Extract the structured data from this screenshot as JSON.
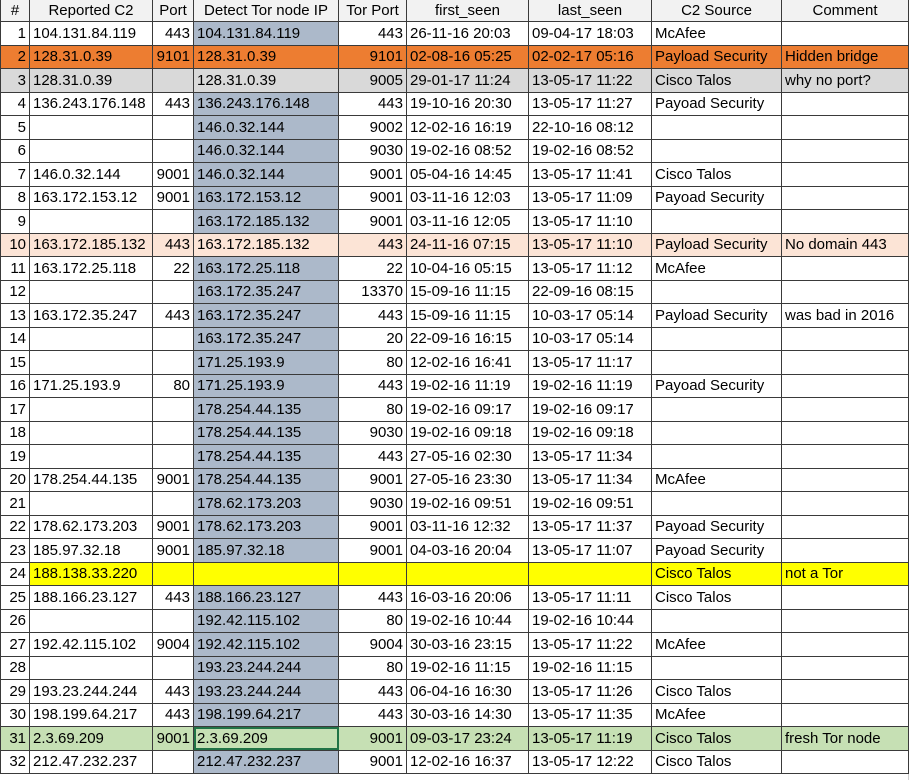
{
  "headers": [
    "#",
    "Reported C2",
    "Port",
    "Detect Tor node IP",
    "Tor Port",
    "first_seen",
    "last_seen",
    "C2 Source",
    "Comment"
  ],
  "row_colors": {
    "orange": "#ED7D31",
    "gray": "#D9D9D9",
    "peach": "#FCE4D6",
    "yellow": "#FFFF00",
    "green": "#C6E0B4",
    "ip_column": "#ACB9CA"
  },
  "selected_cell": {
    "row": 31,
    "column": "Detect Tor node IP"
  },
  "rows": [
    {
      "n": "1",
      "c2": "104.131.84.119",
      "port": "443",
      "ip": "104.131.84.119",
      "tor_port": "443",
      "first": "26-11-16 20:03",
      "last": "09-04-17 18:03",
      "source": "McAfee",
      "comment": "",
      "hl": ""
    },
    {
      "n": "2",
      "c2": "128.31.0.39",
      "port": "9101",
      "ip": "128.31.0.39",
      "tor_port": "9101",
      "first": "02-08-16 05:25",
      "last": "02-02-17 05:16",
      "source": "Payload Security",
      "comment": "Hidden bridge",
      "hl": "orange"
    },
    {
      "n": "3",
      "c2": "128.31.0.39",
      "port": "",
      "ip": "128.31.0.39",
      "tor_port": "9005",
      "first": "29-01-17 11:24",
      "last": "13-05-17 11:22",
      "source": "Cisco Talos",
      "comment": "why no port?",
      "hl": "gray"
    },
    {
      "n": "4",
      "c2": "136.243.176.148",
      "port": "443",
      "ip": "136.243.176.148",
      "tor_port": "443",
      "first": "19-10-16 20:30",
      "last": "13-05-17 11:27",
      "source": "Payoad Security",
      "comment": "",
      "hl": ""
    },
    {
      "n": "5",
      "c2": "",
      "port": "",
      "ip": "146.0.32.144",
      "tor_port": "9002",
      "first": "12-02-16 16:19",
      "last": "22-10-16 08:12",
      "source": "",
      "comment": "",
      "hl": ""
    },
    {
      "n": "6",
      "c2": "",
      "port": "",
      "ip": "146.0.32.144",
      "tor_port": "9030",
      "first": "19-02-16 08:52",
      "last": "19-02-16 08:52",
      "source": "",
      "comment": "",
      "hl": ""
    },
    {
      "n": "7",
      "c2": "146.0.32.144",
      "port": "9001",
      "ip": "146.0.32.144",
      "tor_port": "9001",
      "first": "05-04-16 14:45",
      "last": "13-05-17 11:41",
      "source": "Cisco Talos",
      "comment": "",
      "hl": ""
    },
    {
      "n": "8",
      "c2": "163.172.153.12",
      "port": "9001",
      "ip": "163.172.153.12",
      "tor_port": "9001",
      "first": "03-11-16 12:03",
      "last": "13-05-17 11:09",
      "source": "Payoad Security",
      "comment": "",
      "hl": ""
    },
    {
      "n": "9",
      "c2": "",
      "port": "",
      "ip": "163.172.185.132",
      "tor_port": "9001",
      "first": "03-11-16 12:05",
      "last": "13-05-17 11:10",
      "source": "",
      "comment": "",
      "hl": ""
    },
    {
      "n": "10",
      "c2": "163.172.185.132",
      "port": "443",
      "ip": "163.172.185.132",
      "tor_port": "443",
      "first": "24-11-16 07:15",
      "last": "13-05-17 11:10",
      "source": "Payload Security",
      "comment": "No domain 443",
      "hl": "peach"
    },
    {
      "n": "11",
      "c2": "163.172.25.118",
      "port": "22",
      "ip": "163.172.25.118",
      "tor_port": "22",
      "first": "10-04-16 05:15",
      "last": "13-05-17 11:12",
      "source": "McAfee",
      "comment": "",
      "hl": ""
    },
    {
      "n": "12",
      "c2": "",
      "port": "",
      "ip": "163.172.35.247",
      "tor_port": "13370",
      "first": "15-09-16 11:15",
      "last": "22-09-16 08:15",
      "source": "",
      "comment": "",
      "hl": ""
    },
    {
      "n": "13",
      "c2": "163.172.35.247",
      "port": "443",
      "ip": "163.172.35.247",
      "tor_port": "443",
      "first": "15-09-16 11:15",
      "last": "10-03-17 05:14",
      "source": "Payload Security",
      "comment": "was bad in 2016",
      "hl": ""
    },
    {
      "n": "14",
      "c2": "",
      "port": "",
      "ip": "163.172.35.247",
      "tor_port": "20",
      "first": "22-09-16 16:15",
      "last": "10-03-17 05:14",
      "source": "",
      "comment": "",
      "hl": ""
    },
    {
      "n": "15",
      "c2": "",
      "port": "",
      "ip": "171.25.193.9",
      "tor_port": "80",
      "first": "12-02-16 16:41",
      "last": "13-05-17 11:17",
      "source": "",
      "comment": "",
      "hl": ""
    },
    {
      "n": "16",
      "c2": "171.25.193.9",
      "port": "80",
      "ip": "171.25.193.9",
      "tor_port": "443",
      "first": "19-02-16 11:19",
      "last": "19-02-16 11:19",
      "source": "Payoad Security",
      "comment": "",
      "hl": ""
    },
    {
      "n": "17",
      "c2": "",
      "port": "",
      "ip": "178.254.44.135",
      "tor_port": "80",
      "first": "19-02-16 09:17",
      "last": "19-02-16 09:17",
      "source": "",
      "comment": "",
      "hl": ""
    },
    {
      "n": "18",
      "c2": "",
      "port": "",
      "ip": "178.254.44.135",
      "tor_port": "9030",
      "first": "19-02-16 09:18",
      "last": "19-02-16 09:18",
      "source": "",
      "comment": "",
      "hl": ""
    },
    {
      "n": "19",
      "c2": "",
      "port": "",
      "ip": "178.254.44.135",
      "tor_port": "443",
      "first": "27-05-16 02:30",
      "last": "13-05-17 11:34",
      "source": "",
      "comment": "",
      "hl": ""
    },
    {
      "n": "20",
      "c2": "178.254.44.135",
      "port": "9001",
      "ip": "178.254.44.135",
      "tor_port": "9001",
      "first": "27-05-16 23:30",
      "last": "13-05-17 11:34",
      "source": "McAfee",
      "comment": "",
      "hl": ""
    },
    {
      "n": "21",
      "c2": "",
      "port": "",
      "ip": "178.62.173.203",
      "tor_port": "9030",
      "first": "19-02-16 09:51",
      "last": "19-02-16 09:51",
      "source": "",
      "comment": "",
      "hl": ""
    },
    {
      "n": "22",
      "c2": "178.62.173.203",
      "port": "9001",
      "ip": "178.62.173.203",
      "tor_port": "9001",
      "first": "03-11-16 12:32",
      "last": "13-05-17 11:37",
      "source": "Payoad Security",
      "comment": "",
      "hl": ""
    },
    {
      "n": "23",
      "c2": "185.97.32.18",
      "port": "9001",
      "ip": "185.97.32.18",
      "tor_port": "9001",
      "first": "04-03-16 20:04",
      "last": "13-05-17 11:07",
      "source": "Payoad Security",
      "comment": "",
      "hl": ""
    },
    {
      "n": "24",
      "c2": "188.138.33.220",
      "port": "",
      "ip": "",
      "tor_port": "",
      "first": "",
      "last": "",
      "source": "Cisco Talos",
      "comment": "not a Tor",
      "hl": "yellow"
    },
    {
      "n": "25",
      "c2": "188.166.23.127",
      "port": "443",
      "ip": "188.166.23.127",
      "tor_port": "443",
      "first": "16-03-16 20:06",
      "last": "13-05-17 11:11",
      "source": "Cisco Talos",
      "comment": "",
      "hl": ""
    },
    {
      "n": "26",
      "c2": "",
      "port": "",
      "ip": "192.42.115.102",
      "tor_port": "80",
      "first": "19-02-16 10:44",
      "last": "19-02-16 10:44",
      "source": "",
      "comment": "",
      "hl": ""
    },
    {
      "n": "27",
      "c2": "192.42.115.102",
      "port": "9004",
      "ip": "192.42.115.102",
      "tor_port": "9004",
      "first": "30-03-16 23:15",
      "last": "13-05-17 11:22",
      "source": "McAfee",
      "comment": "",
      "hl": ""
    },
    {
      "n": "28",
      "c2": "",
      "port": "",
      "ip": "193.23.244.244",
      "tor_port": "80",
      "first": "19-02-16 11:15",
      "last": "19-02-16 11:15",
      "source": "",
      "comment": "",
      "hl": ""
    },
    {
      "n": "29",
      "c2": "193.23.244.244",
      "port": "443",
      "ip": "193.23.244.244",
      "tor_port": "443",
      "first": "06-04-16 16:30",
      "last": "13-05-17 11:26",
      "source": "Cisco Talos",
      "comment": "",
      "hl": ""
    },
    {
      "n": "30",
      "c2": "198.199.64.217",
      "port": "443",
      "ip": "198.199.64.217",
      "tor_port": "443",
      "first": "30-03-16 14:30",
      "last": "13-05-17 11:35",
      "source": "McAfee",
      "comment": "",
      "hl": ""
    },
    {
      "n": "31",
      "c2": "2.3.69.209",
      "port": "9001",
      "ip": "2.3.69.209",
      "tor_port": "9001",
      "first": "09-03-17 23:24",
      "last": "13-05-17 11:19",
      "source": "Cisco Talos",
      "comment": "fresh Tor node",
      "hl": "green"
    },
    {
      "n": "32",
      "c2": "212.47.232.237",
      "port": "",
      "ip": "212.47.232.237",
      "tor_port": "9001",
      "first": "12-02-16 16:37",
      "last": "13-05-17 12:22",
      "source": "Cisco Talos",
      "comment": "",
      "hl": ""
    }
  ]
}
